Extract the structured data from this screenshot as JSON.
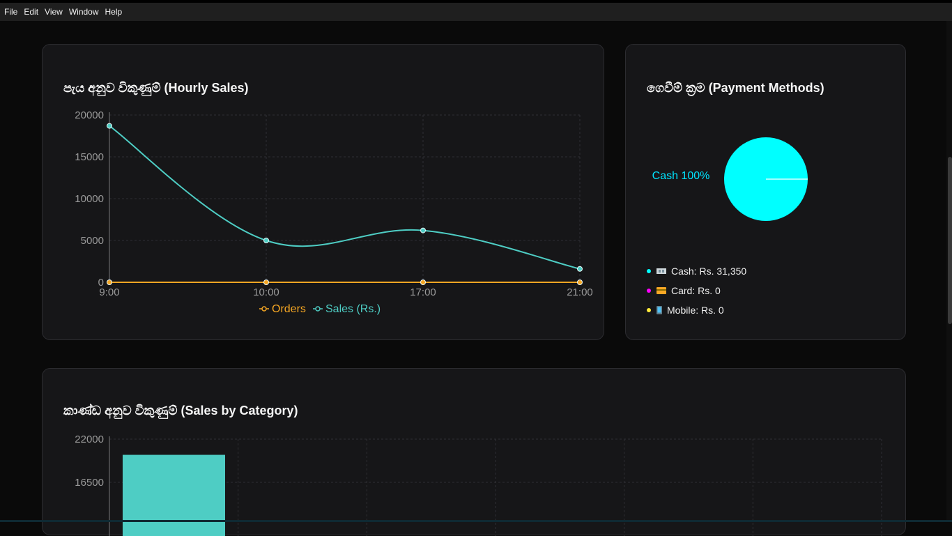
{
  "menu": {
    "items": [
      "File",
      "Edit",
      "View",
      "Window",
      "Help"
    ]
  },
  "hourly_card": {
    "title": "පැය අනුව විකුණුම් (Hourly Sales)"
  },
  "payment_card": {
    "title": "ගෙවීම් ක්‍රම (Payment Methods)",
    "pie_label": "Cash 100%",
    "legend": [
      {
        "label": "Cash: Rs. 31,350",
        "color": "#00ffff",
        "icon": "cash-icon"
      },
      {
        "label": "Card: Rs. 0",
        "color": "#ff00ff",
        "icon": "card-icon"
      },
      {
        "label": "Mobile: Rs. 0",
        "color": "#ffeb3b",
        "icon": "mobile-icon"
      }
    ]
  },
  "category_card": {
    "title": "කාණ්ඩ අනුව විකුණුම් (Sales by Category)"
  },
  "chart_data": [
    {
      "type": "line",
      "title": "පැය අනුව විකුණුම් (Hourly Sales)",
      "categories": [
        "9:00",
        "10:00",
        "17:00",
        "21:00"
      ],
      "series": [
        {
          "name": "Orders",
          "values": [
            0,
            0,
            0,
            0
          ],
          "color": "#f5a623"
        },
        {
          "name": "Sales (Rs.)",
          "values": [
            18700,
            5000,
            6200,
            1600
          ],
          "color": "#4ecdc4"
        }
      ],
      "ylim": [
        0,
        20000
      ],
      "yticks": [
        0,
        5000,
        10000,
        15000,
        20000
      ],
      "grid": true,
      "legend": "bottom"
    },
    {
      "type": "pie",
      "title": "ගෙවීම් ක්‍රම (Payment Methods)",
      "slices": [
        {
          "label": "Cash",
          "value": 100,
          "color": "#00ffff"
        }
      ],
      "labels": [
        "Cash 100%"
      ]
    },
    {
      "type": "bar",
      "title": "කාණ්ඩ අනුව විකුණුම් (Sales by Category)",
      "values": [
        20000
      ],
      "ylim": [
        11000,
        22000
      ],
      "yticks": [
        16500,
        22000
      ],
      "color": "#4ecdc4",
      "grid": true
    }
  ]
}
